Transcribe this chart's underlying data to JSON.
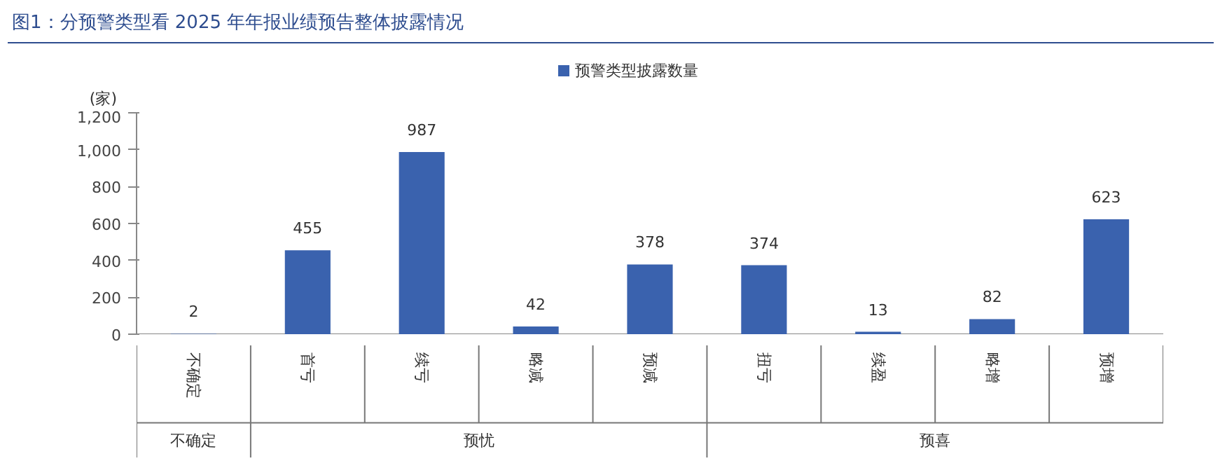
{
  "chart_data": {
    "type": "bar",
    "title": "图1：分预警类型看 2025 年年报业绩预告整体披露情况",
    "ylabel": "(家)",
    "categories": [
      "不确定",
      "首亏",
      "续亏",
      "略减",
      "预减",
      "扭亏",
      "续盈",
      "略增",
      "预增"
    ],
    "series": [
      {
        "name": "预警类型披露数量",
        "color": "#3a62ae",
        "values": [
          2,
          455,
          987,
          42,
          378,
          374,
          13,
          82,
          623
        ]
      }
    ],
    "ylim": [
      0,
      1200
    ],
    "yticks": [
      0,
      200,
      400,
      600,
      {
        "value": 800,
        "label": "800"
      },
      {
        "value": 1000,
        "label": "1,000"
      },
      {
        "value": 1200,
        "label": "1,200"
      }
    ],
    "annotations": [
      "不确定",
      "预忧",
      "预喜"
    ],
    "data_labels": true,
    "grid": false,
    "legend": "top"
  }
}
